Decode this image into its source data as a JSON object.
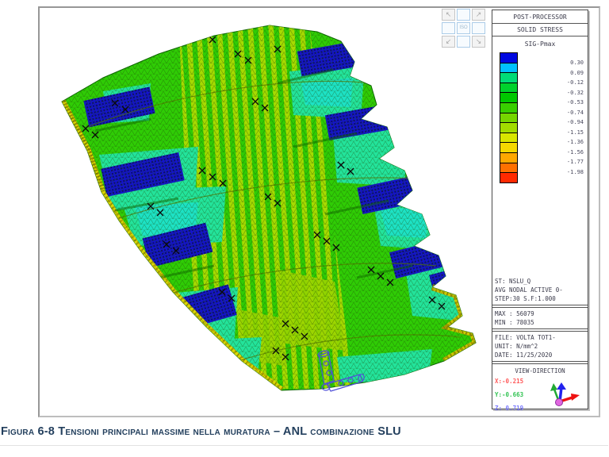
{
  "legend_panel": {
    "title": "POST-PROCESSOR",
    "subtitle": "SOLID STRESS",
    "component": "SIG-Pmax",
    "scale": {
      "colors": [
        "#0008e0",
        "#00c0ff",
        "#00dc78",
        "#00d22d",
        "#00c800",
        "#38cf00",
        "#76d600",
        "#a2dc00",
        "#d8e600",
        "#f5d800",
        "#ffa800",
        "#ff7000",
        "#ff2a00"
      ],
      "values": [
        "0.30",
        "0.09",
        "-0.12",
        "-0.32",
        "-0.53",
        "-0.74",
        "-0.94",
        "-1.15",
        "-1.36",
        "-1.56",
        "-1.77",
        "-1.98"
      ]
    },
    "analysis_lines": [
      "ST: NSLU_Q",
      "AVG NODAL ACTIVE 0-",
      "STEP:30 S.F:1.000"
    ],
    "max_line": "MAX : 56079",
    "min_line": "MIN : 78035",
    "file_lines": [
      "FILE: VOLTA TOT1-",
      "UNIT: N/mm^2",
      "DATE: 11/25/2020"
    ],
    "view_direction": {
      "title": "VIEW-DIRECTION",
      "x": "X:-0.215",
      "y": "Y:-0.663",
      "z": "Z: 0.719",
      "x_color": "#ff5a5a",
      "y_color": "#35c455",
      "z_color": "#7a7aff"
    }
  },
  "view_buttons": {
    "labels": [
      "↖",
      "",
      "↗",
      "",
      "ISO",
      "",
      "↙",
      "",
      "↘"
    ]
  },
  "mesh_palette": {
    "field_green": "#2fcc05",
    "stripe_yellow_green": "#a6da00",
    "patch_cyan": "#23e39b",
    "patch_blue": "#1414cc",
    "edge_yellow": "#ddd800",
    "stress_cross_black": "#0a0a0a"
  },
  "caption": {
    "text": "Figura 6-8 Tensioni principali massime nella muratura – ANL combinazione SLU",
    "color": "#24405e"
  }
}
